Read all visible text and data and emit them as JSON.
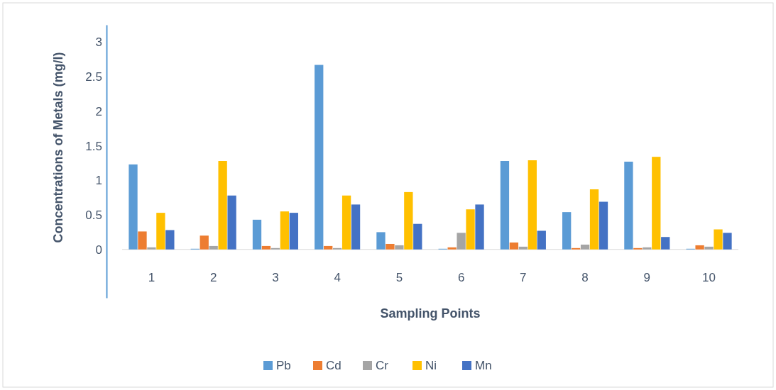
{
  "chart_data": {
    "type": "bar",
    "xlabel": "Sampling Points",
    "ylabel": "Concentrations of Metals (mg/l)",
    "categories": [
      "1",
      "2",
      "3",
      "4",
      "5",
      "6",
      "7",
      "8",
      "9",
      "10"
    ],
    "series": [
      {
        "name": "Pb",
        "color": "#5b9bd5",
        "values": [
          1.23,
          0.01,
          0.43,
          2.67,
          0.25,
          0.01,
          1.28,
          0.54,
          1.27,
          0.01
        ]
      },
      {
        "name": "Cd",
        "color": "#ed7d31",
        "values": [
          0.26,
          0.2,
          0.05,
          0.05,
          0.08,
          0.03,
          0.1,
          0.02,
          0.02,
          0.06
        ]
      },
      {
        "name": "Cr",
        "color": "#a5a5a5",
        "values": [
          0.03,
          0.05,
          0.02,
          0.02,
          0.06,
          0.24,
          0.04,
          0.07,
          0.03,
          0.04
        ]
      },
      {
        "name": "Ni",
        "color": "#ffc000",
        "values": [
          0.53,
          1.28,
          0.55,
          0.78,
          0.83,
          0.58,
          1.29,
          0.87,
          1.34,
          0.29
        ]
      },
      {
        "name": "Mn",
        "color": "#4472c4",
        "values": [
          0.28,
          0.78,
          0.53,
          0.65,
          0.37,
          0.65,
          0.27,
          0.69,
          0.18,
          0.24
        ]
      }
    ],
    "ylim": [
      -0.7,
      3.25
    ],
    "yticks": [
      0,
      0.5,
      1,
      1.5,
      2,
      2.5,
      3
    ],
    "grid": false,
    "legend": "bottom"
  }
}
